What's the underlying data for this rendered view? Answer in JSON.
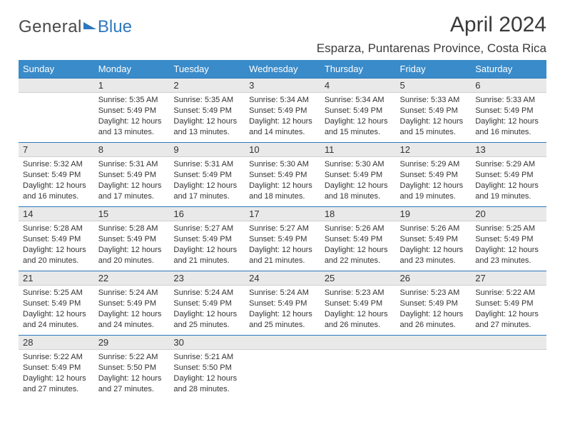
{
  "logo": {
    "part1": "General",
    "part2": "Blue"
  },
  "title": "April 2024",
  "location": "Esparza, Puntarenas Province, Costa Rica",
  "colors": {
    "header_bg": "#3a8bc9",
    "header_text": "#ffffff",
    "daynum_bg": "#e9e9e9",
    "row_divider": "#2d78bf",
    "text": "#333333",
    "logo_gray": "#4a4a4a",
    "logo_blue": "#2d78bf"
  },
  "weekdays": [
    "Sunday",
    "Monday",
    "Tuesday",
    "Wednesday",
    "Thursday",
    "Friday",
    "Saturday"
  ],
  "weeks": [
    [
      {
        "blank": true
      },
      {
        "day": "1",
        "sunrise": "5:35 AM",
        "sunset": "5:49 PM",
        "daylight": "12 hours and 13 minutes."
      },
      {
        "day": "2",
        "sunrise": "5:35 AM",
        "sunset": "5:49 PM",
        "daylight": "12 hours and 13 minutes."
      },
      {
        "day": "3",
        "sunrise": "5:34 AM",
        "sunset": "5:49 PM",
        "daylight": "12 hours and 14 minutes."
      },
      {
        "day": "4",
        "sunrise": "5:34 AM",
        "sunset": "5:49 PM",
        "daylight": "12 hours and 15 minutes."
      },
      {
        "day": "5",
        "sunrise": "5:33 AM",
        "sunset": "5:49 PM",
        "daylight": "12 hours and 15 minutes."
      },
      {
        "day": "6",
        "sunrise": "5:33 AM",
        "sunset": "5:49 PM",
        "daylight": "12 hours and 16 minutes."
      }
    ],
    [
      {
        "day": "7",
        "sunrise": "5:32 AM",
        "sunset": "5:49 PM",
        "daylight": "12 hours and 16 minutes."
      },
      {
        "day": "8",
        "sunrise": "5:31 AM",
        "sunset": "5:49 PM",
        "daylight": "12 hours and 17 minutes."
      },
      {
        "day": "9",
        "sunrise": "5:31 AM",
        "sunset": "5:49 PM",
        "daylight": "12 hours and 17 minutes."
      },
      {
        "day": "10",
        "sunrise": "5:30 AM",
        "sunset": "5:49 PM",
        "daylight": "12 hours and 18 minutes."
      },
      {
        "day": "11",
        "sunrise": "5:30 AM",
        "sunset": "5:49 PM",
        "daylight": "12 hours and 18 minutes."
      },
      {
        "day": "12",
        "sunrise": "5:29 AM",
        "sunset": "5:49 PM",
        "daylight": "12 hours and 19 minutes."
      },
      {
        "day": "13",
        "sunrise": "5:29 AM",
        "sunset": "5:49 PM",
        "daylight": "12 hours and 19 minutes."
      }
    ],
    [
      {
        "day": "14",
        "sunrise": "5:28 AM",
        "sunset": "5:49 PM",
        "daylight": "12 hours and 20 minutes."
      },
      {
        "day": "15",
        "sunrise": "5:28 AM",
        "sunset": "5:49 PM",
        "daylight": "12 hours and 20 minutes."
      },
      {
        "day": "16",
        "sunrise": "5:27 AM",
        "sunset": "5:49 PM",
        "daylight": "12 hours and 21 minutes."
      },
      {
        "day": "17",
        "sunrise": "5:27 AM",
        "sunset": "5:49 PM",
        "daylight": "12 hours and 21 minutes."
      },
      {
        "day": "18",
        "sunrise": "5:26 AM",
        "sunset": "5:49 PM",
        "daylight": "12 hours and 22 minutes."
      },
      {
        "day": "19",
        "sunrise": "5:26 AM",
        "sunset": "5:49 PM",
        "daylight": "12 hours and 23 minutes."
      },
      {
        "day": "20",
        "sunrise": "5:25 AM",
        "sunset": "5:49 PM",
        "daylight": "12 hours and 23 minutes."
      }
    ],
    [
      {
        "day": "21",
        "sunrise": "5:25 AM",
        "sunset": "5:49 PM",
        "daylight": "12 hours and 24 minutes."
      },
      {
        "day": "22",
        "sunrise": "5:24 AM",
        "sunset": "5:49 PM",
        "daylight": "12 hours and 24 minutes."
      },
      {
        "day": "23",
        "sunrise": "5:24 AM",
        "sunset": "5:49 PM",
        "daylight": "12 hours and 25 minutes."
      },
      {
        "day": "24",
        "sunrise": "5:24 AM",
        "sunset": "5:49 PM",
        "daylight": "12 hours and 25 minutes."
      },
      {
        "day": "25",
        "sunrise": "5:23 AM",
        "sunset": "5:49 PM",
        "daylight": "12 hours and 26 minutes."
      },
      {
        "day": "26",
        "sunrise": "5:23 AM",
        "sunset": "5:49 PM",
        "daylight": "12 hours and 26 minutes."
      },
      {
        "day": "27",
        "sunrise": "5:22 AM",
        "sunset": "5:49 PM",
        "daylight": "12 hours and 27 minutes."
      }
    ],
    [
      {
        "day": "28",
        "sunrise": "5:22 AM",
        "sunset": "5:49 PM",
        "daylight": "12 hours and 27 minutes."
      },
      {
        "day": "29",
        "sunrise": "5:22 AM",
        "sunset": "5:50 PM",
        "daylight": "12 hours and 27 minutes."
      },
      {
        "day": "30",
        "sunrise": "5:21 AM",
        "sunset": "5:50 PM",
        "daylight": "12 hours and 28 minutes."
      },
      {
        "blank": true
      },
      {
        "blank": true
      },
      {
        "blank": true
      },
      {
        "blank": true
      }
    ]
  ],
  "labels": {
    "sunrise": "Sunrise:",
    "sunset": "Sunset:",
    "daylight": "Daylight:"
  }
}
